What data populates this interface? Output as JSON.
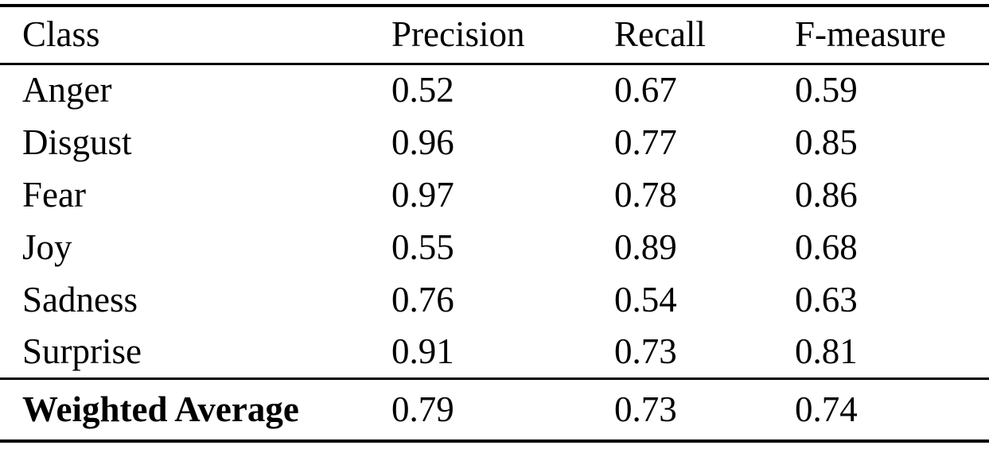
{
  "table": {
    "columns": {
      "class": "Class",
      "precision": "Precision",
      "recall": "Recall",
      "f_measure": "F-measure"
    },
    "rows": [
      {
        "class": "Anger",
        "precision": "0.52",
        "recall": "0.67",
        "f_measure": "0.59"
      },
      {
        "class": "Disgust",
        "precision": "0.96",
        "recall": "0.77",
        "f_measure": "0.85"
      },
      {
        "class": "Fear",
        "precision": "0.97",
        "recall": "0.78",
        "f_measure": "0.86"
      },
      {
        "class": "Joy",
        "precision": "0.55",
        "recall": "0.89",
        "f_measure": "0.68"
      },
      {
        "class": "Sadness",
        "precision": "0.76",
        "recall": "0.54",
        "f_measure": "0.63"
      },
      {
        "class": "Surprise",
        "precision": "0.91",
        "recall": "0.73",
        "f_measure": "0.81"
      }
    ],
    "footer": {
      "class": "Weighted Average",
      "precision": "0.79",
      "recall": "0.73",
      "f_measure": "0.74"
    }
  },
  "chart_data": {
    "type": "table",
    "title": "",
    "columns": [
      "Class",
      "Precision",
      "Recall",
      "F-measure"
    ],
    "rows": [
      [
        "Anger",
        0.52,
        0.67,
        0.59
      ],
      [
        "Disgust",
        0.96,
        0.77,
        0.85
      ],
      [
        "Fear",
        0.97,
        0.78,
        0.86
      ],
      [
        "Joy",
        0.55,
        0.89,
        0.68
      ],
      [
        "Sadness",
        0.76,
        0.54,
        0.63
      ],
      [
        "Surprise",
        0.91,
        0.73,
        0.81
      ],
      [
        "Weighted Average",
        0.79,
        0.73,
        0.74
      ]
    ]
  },
  "colors": {
    "text": "#000000",
    "background": "#ffffff",
    "rule": "#000000"
  }
}
